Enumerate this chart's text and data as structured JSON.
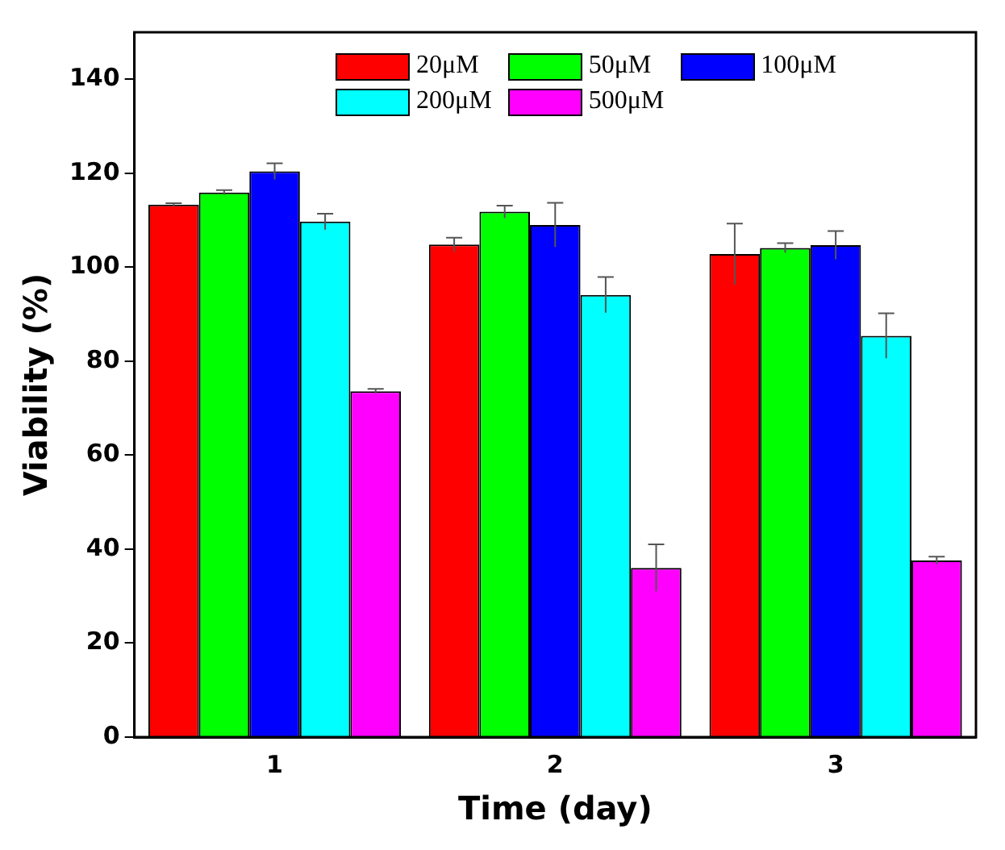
{
  "chart_data": {
    "type": "bar",
    "xlabel": "Time (day)",
    "ylabel": "Viability (%)",
    "categories": [
      "1",
      "2",
      "3"
    ],
    "series": [
      {
        "name": "20μM",
        "color": "#ff0000",
        "values": [
          113.3,
          104.8,
          102.8
        ],
        "errors": [
          0.3,
          1.5,
          6.5
        ]
      },
      {
        "name": "50μM",
        "color": "#00ff00",
        "values": [
          115.9,
          111.8,
          104.1
        ],
        "errors": [
          0.5,
          1.3,
          1
        ]
      },
      {
        "name": "100μM",
        "color": "#0000ff",
        "values": [
          120.4,
          109,
          104.7
        ],
        "errors": [
          1.7,
          4.7,
          3
        ]
      },
      {
        "name": "200μM",
        "color": "#00ffff",
        "values": [
          109.7,
          94.1,
          85.4
        ],
        "errors": [
          1.7,
          3.8,
          4.8
        ]
      },
      {
        "name": "500μM",
        "color": "#ff00ff",
        "values": [
          73.6,
          36,
          37.6
        ],
        "errors": [
          0.5,
          5,
          0.8
        ]
      }
    ],
    "ylim": [
      0,
      150
    ],
    "yticks": [
      0,
      20,
      40,
      60,
      80,
      100,
      120,
      140
    ],
    "grid": false,
    "legend": "top"
  }
}
